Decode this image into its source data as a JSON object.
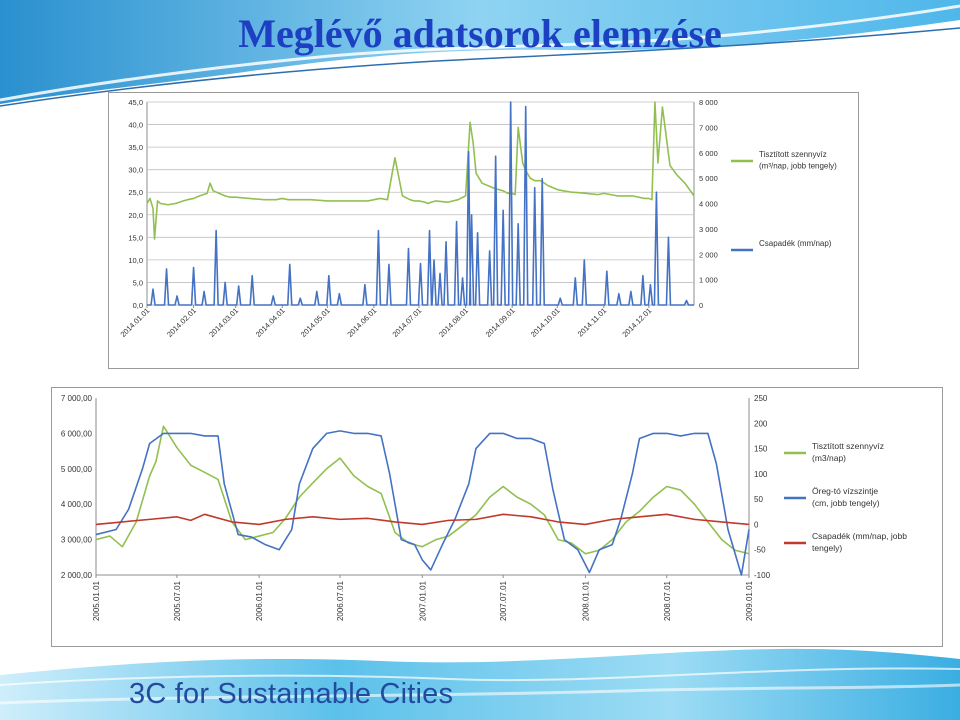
{
  "slide": {
    "title": "Meglévő adatsorok elemzése",
    "brand": "3C for Sustainable Cities"
  },
  "colors": {
    "title": "#1d3fc2",
    "effluent_series": "#92c050",
    "rain_series": "#4472c4",
    "lake_level_series": "#4472c4",
    "rain_series_2": "#c0392b",
    "grid": "#bfbfbf",
    "brand": "#244a9e"
  },
  "chart_data": [
    {
      "type": "line",
      "x_tick_labels": [
        "2014.01.01",
        "2014.02.01",
        "2014.03.01",
        "2014.04.01",
        "2014.05.01",
        "2014.06.01",
        "2014.07.01",
        "2014.08.01",
        "2014.09.01",
        "2014.10.01",
        "2014.11.01",
        "2014.12.01"
      ],
      "x_range": [
        "2014-01-01",
        "2014-12-31"
      ],
      "y_left": {
        "ticks": [
          "45,0",
          "40,0",
          "35,0",
          "30,0",
          "25,0",
          "20,0",
          "15,0",
          "10,0",
          "5,0",
          "0,0"
        ],
        "ylim": [
          0,
          45
        ]
      },
      "y_right": {
        "ticks": [
          "8 000",
          "7 000",
          "6 000",
          "5 000",
          "4 000",
          "3 000",
          "2 000",
          "1 000",
          "0"
        ],
        "ylim": [
          0,
          8000
        ]
      },
      "grid": true,
      "legend_position": "right",
      "series": [
        {
          "name": "Tisztított  szennyvíz (m³/nap, jobb tengely)",
          "axis": "right",
          "x": [
            "2014-01-01",
            "2014-01-03",
            "2014-01-05",
            "2014-01-06",
            "2014-01-08",
            "2014-01-10",
            "2014-01-15",
            "2014-01-20",
            "2014-01-25",
            "2014-01-28",
            "2014-02-01",
            "2014-02-05",
            "2014-02-10",
            "2014-02-12",
            "2014-02-14",
            "2014-02-18",
            "2014-02-22",
            "2014-02-25",
            "2014-03-01",
            "2014-03-10",
            "2014-03-20",
            "2014-03-28",
            "2014-04-01",
            "2014-04-05",
            "2014-04-10",
            "2014-04-20",
            "2014-05-01",
            "2014-05-10",
            "2014-05-20",
            "2014-05-28",
            "2014-06-01",
            "2014-06-05",
            "2014-06-10",
            "2014-06-15",
            "2014-06-20",
            "2014-06-25",
            "2014-06-28",
            "2014-07-01",
            "2014-07-05",
            "2014-07-07",
            "2014-07-09",
            "2014-07-12",
            "2014-07-20",
            "2014-07-27",
            "2014-08-01",
            "2014-08-04",
            "2014-08-06",
            "2014-08-08",
            "2014-08-12",
            "2014-08-20",
            "2014-08-26",
            "2014-08-29",
            "2014-09-01",
            "2014-09-03",
            "2014-09-05",
            "2014-09-08",
            "2014-09-10",
            "2014-09-13",
            "2014-09-16",
            "2014-09-20",
            "2014-09-25",
            "2014-10-01",
            "2014-10-05",
            "2014-10-10",
            "2014-10-20",
            "2014-10-28",
            "2014-11-01",
            "2014-11-10",
            "2014-11-20",
            "2014-11-28",
            "2014-12-01",
            "2014-12-03",
            "2014-12-05",
            "2014-12-07",
            "2014-12-10",
            "2014-12-15",
            "2014-12-20",
            "2014-12-25",
            "2014-12-31"
          ],
          "values": [
            4000,
            4200,
            3800,
            2600,
            4100,
            4000,
            3950,
            4000,
            4100,
            4150,
            4200,
            4300,
            4400,
            4800,
            4500,
            4400,
            4300,
            4250,
            4250,
            4200,
            4150,
            4150,
            4200,
            4150,
            4150,
            4150,
            4100,
            4100,
            4100,
            4100,
            4150,
            4200,
            4150,
            5800,
            4300,
            4150,
            4100,
            4100,
            4050,
            4000,
            4050,
            4100,
            4050,
            4150,
            4300,
            7200,
            6400,
            5200,
            4800,
            4600,
            4500,
            4400,
            4400,
            4350,
            7000,
            5600,
            5300,
            5000,
            4900,
            4900,
            4700,
            4550,
            4500,
            4450,
            4400,
            4350,
            4400,
            4300,
            4300,
            4200,
            4200,
            4150,
            8000,
            5600,
            7800,
            5500,
            5100,
            4800,
            4300
          ]
        },
        {
          "name": "Csapadék (mm/nap)",
          "axis": "left",
          "x": [
            "2014-01-05",
            "2014-01-14",
            "2014-01-21",
            "2014-02-01",
            "2014-02-08",
            "2014-02-16",
            "2014-02-22",
            "2014-03-03",
            "2014-03-12",
            "2014-03-26",
            "2014-04-06",
            "2014-04-13",
            "2014-04-24",
            "2014-05-02",
            "2014-05-09",
            "2014-05-26",
            "2014-06-04",
            "2014-06-11",
            "2014-06-24",
            "2014-07-02",
            "2014-07-08",
            "2014-07-11",
            "2014-07-15",
            "2014-07-19",
            "2014-07-26",
            "2014-07-30",
            "2014-08-03",
            "2014-08-05",
            "2014-08-09",
            "2014-08-17",
            "2014-08-21",
            "2014-08-26",
            "2014-08-31",
            "2014-09-05",
            "2014-09-10",
            "2014-09-16",
            "2014-09-21",
            "2014-10-03",
            "2014-10-13",
            "2014-10-19",
            "2014-11-03",
            "2014-11-11",
            "2014-11-19",
            "2014-11-27",
            "2014-12-02",
            "2014-12-06",
            "2014-12-14",
            "2014-12-26"
          ],
          "values": [
            3.5,
            8.0,
            2.0,
            8.3,
            3.0,
            16.5,
            5.0,
            4.2,
            6.5,
            2.0,
            9.0,
            1.5,
            3.0,
            6.5,
            2.5,
            4.5,
            16.5,
            9.0,
            12.5,
            9.2,
            16.5,
            10.0,
            7.0,
            14.0,
            18.5,
            6.0,
            34.0,
            20.0,
            16.0,
            12.0,
            33.0,
            21.0,
            45.0,
            18.0,
            44.0,
            26.0,
            28.0,
            1.5,
            6.0,
            10.0,
            7.5,
            2.5,
            3.0,
            6.5,
            4.5,
            25.0,
            15.0,
            1.0
          ]
        }
      ]
    },
    {
      "type": "line",
      "x_tick_labels": [
        "2005.01.01",
        "2005.07.01",
        "2006.01.01",
        "2006.07.01",
        "2007.01.01",
        "2007.07.01",
        "2008.01.01",
        "2008.07.01",
        "2009.01.01"
      ],
      "x_range": [
        "2005-01-01",
        "2009-01-01"
      ],
      "y_left": {
        "ticks": [
          "7 000,00",
          "6 000,00",
          "5 000,00",
          "4 000,00",
          "3 000,00",
          "2 000,00"
        ],
        "ylim": [
          2000,
          7000
        ]
      },
      "y_right": {
        "ticks": [
          "250",
          "200",
          "150",
          "100",
          "50",
          "0",
          "-50",
          "-100"
        ],
        "ylim": [
          -100,
          250
        ]
      },
      "grid": false,
      "legend_position": "right",
      "series": [
        {
          "name": "Tisztított szennyvíz (m3/nap)",
          "axis": "left",
          "x": [
            "2005-01-01",
            "2005-02-01",
            "2005-03-01",
            "2005-04-01",
            "2005-05-01",
            "2005-05-15",
            "2005-06-01",
            "2005-07-01",
            "2005-08-01",
            "2005-09-01",
            "2005-10-01",
            "2005-11-01",
            "2005-12-01",
            "2006-01-01",
            "2006-02-01",
            "2006-03-01",
            "2006-04-01",
            "2006-05-01",
            "2006-06-01",
            "2006-07-01",
            "2006-08-01",
            "2006-09-01",
            "2006-10-01",
            "2006-11-01",
            "2006-12-01",
            "2007-01-01",
            "2007-02-01",
            "2007-03-01",
            "2007-04-01",
            "2007-05-01",
            "2007-06-01",
            "2007-07-01",
            "2007-08-01",
            "2007-09-01",
            "2007-10-01",
            "2007-11-01",
            "2007-12-01",
            "2008-01-01",
            "2008-02-01",
            "2008-03-01",
            "2008-04-01",
            "2008-05-01",
            "2008-06-01",
            "2008-07-01",
            "2008-08-01",
            "2008-09-01",
            "2008-10-01",
            "2008-11-01",
            "2008-12-01",
            "2009-01-01"
          ],
          "values": [
            3000,
            3100,
            2800,
            3500,
            4800,
            5200,
            6200,
            5600,
            5100,
            4900,
            4700,
            3500,
            3000,
            3100,
            3200,
            3600,
            4200,
            4600,
            5000,
            5300,
            4800,
            4500,
            4300,
            3200,
            2900,
            2800,
            3000,
            3100,
            3400,
            3700,
            4200,
            4500,
            4200,
            4000,
            3700,
            3000,
            2900,
            2600,
            2700,
            3000,
            3500,
            3800,
            4200,
            4500,
            4400,
            4000,
            3500,
            3000,
            2700,
            2600
          ]
        },
        {
          "name": "Öreg-tó vízszintje (cm, jobb tengely)",
          "axis": "right",
          "x": [
            "2005-01-01",
            "2005-02-15",
            "2005-03-15",
            "2005-04-15",
            "2005-05-01",
            "2005-06-01",
            "2005-07-01",
            "2005-08-01",
            "2005-09-01",
            "2005-10-01",
            "2005-10-15",
            "2005-11-15",
            "2005-12-15",
            "2006-01-15",
            "2006-02-15",
            "2006-03-15",
            "2006-04-01",
            "2006-05-01",
            "2006-06-01",
            "2006-07-01",
            "2006-08-01",
            "2006-09-01",
            "2006-10-01",
            "2006-10-20",
            "2006-11-15",
            "2006-12-15",
            "2007-01-01",
            "2007-01-20",
            "2007-02-15",
            "2007-03-15",
            "2007-04-15",
            "2007-05-01",
            "2007-06-01",
            "2007-07-01",
            "2007-08-01",
            "2007-09-01",
            "2007-10-01",
            "2007-10-20",
            "2007-11-15",
            "2007-12-15",
            "2008-01-10",
            "2008-02-01",
            "2008-03-01",
            "2008-03-20",
            "2008-04-15",
            "2008-05-01",
            "2008-06-01",
            "2008-07-01",
            "2008-08-01",
            "2008-09-01",
            "2008-10-01",
            "2008-10-20",
            "2008-11-15",
            "2008-12-15",
            "2009-01-01"
          ],
          "values": [
            -20,
            -10,
            30,
            110,
            160,
            180,
            180,
            180,
            175,
            175,
            80,
            -20,
            -25,
            -40,
            -50,
            -10,
            80,
            150,
            180,
            185,
            180,
            180,
            175,
            100,
            -30,
            -40,
            -70,
            -90,
            -40,
            10,
            80,
            150,
            180,
            180,
            170,
            170,
            160,
            70,
            -30,
            -50,
            -95,
            -50,
            -40,
            10,
            100,
            170,
            180,
            180,
            175,
            180,
            180,
            120,
            -10,
            -100,
            -10
          ]
        },
        {
          "name": "Csapadék (mm/nap, jobb tengely)",
          "axis": "right",
          "x": [
            "2005-01-01",
            "2005-03-01",
            "2005-05-01",
            "2005-07-01",
            "2005-08-01",
            "2005-09-01",
            "2005-11-01",
            "2006-01-01",
            "2006-03-01",
            "2006-05-01",
            "2006-07-01",
            "2006-09-01",
            "2006-11-01",
            "2007-01-01",
            "2007-03-01",
            "2007-05-01",
            "2007-07-01",
            "2007-09-01",
            "2007-11-01",
            "2008-01-01",
            "2008-03-01",
            "2008-05-01",
            "2008-07-01",
            "2008-09-01",
            "2008-11-01",
            "2009-01-01"
          ],
          "values": [
            0,
            5,
            10,
            15,
            8,
            20,
            5,
            0,
            10,
            15,
            10,
            12,
            5,
            0,
            8,
            10,
            20,
            15,
            5,
            0,
            10,
            15,
            20,
            10,
            5,
            0
          ]
        }
      ]
    }
  ]
}
